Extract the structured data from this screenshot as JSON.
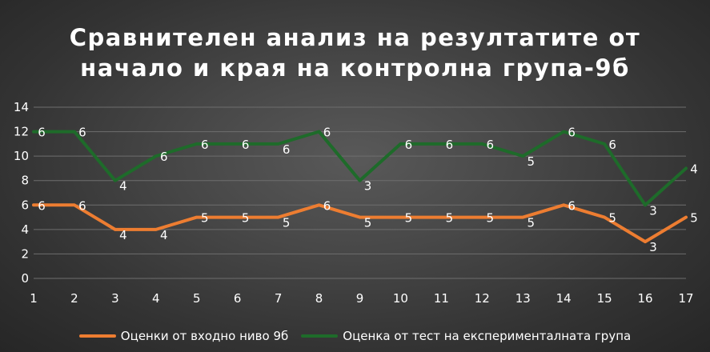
{
  "chart_data": {
    "type": "line",
    "title_lines": [
      "Сравнителен анализ на резултатите от",
      "начало и края на контролна група-9б"
    ],
    "xlabel": "",
    "ylabel": "",
    "categories": [
      "1",
      "2",
      "3",
      "4",
      "5",
      "6",
      "7",
      "8",
      "9",
      "10",
      "11",
      "12",
      "13",
      "14",
      "15",
      "16",
      "17"
    ],
    "ylim": [
      0,
      14
    ],
    "yticks": [
      "0",
      "2",
      "4",
      "6",
      "8",
      "10",
      "12",
      "14"
    ],
    "grid": true,
    "legend_position": "bottom",
    "series": [
      {
        "name": "Оценки от входно ниво 9б",
        "color": "#ed7d31",
        "values": [
          6,
          6,
          4,
          4,
          5,
          5,
          5,
          6,
          5,
          5,
          5,
          5,
          5,
          6,
          5,
          3,
          5
        ],
        "labels": [
          "6",
          "6",
          "4",
          "4",
          "5",
          "5",
          "5",
          "6",
          "5",
          "5",
          "5",
          "5",
          "5",
          "6",
          "5",
          "3",
          "5"
        ]
      },
      {
        "name": "Оценка от тест на експерименталната група",
        "color": "#1e6b2a",
        "values": [
          12,
          12,
          8,
          10,
          11,
          11,
          11,
          12,
          8,
          11,
          11,
          11,
          10,
          12,
          11,
          6,
          9
        ],
        "labels": [
          "6",
          "6",
          "4",
          "6",
          "6",
          "6",
          "6",
          "6",
          "3",
          "6",
          "6",
          "6",
          "5",
          "6",
          "6",
          "3",
          "4"
        ]
      }
    ]
  }
}
